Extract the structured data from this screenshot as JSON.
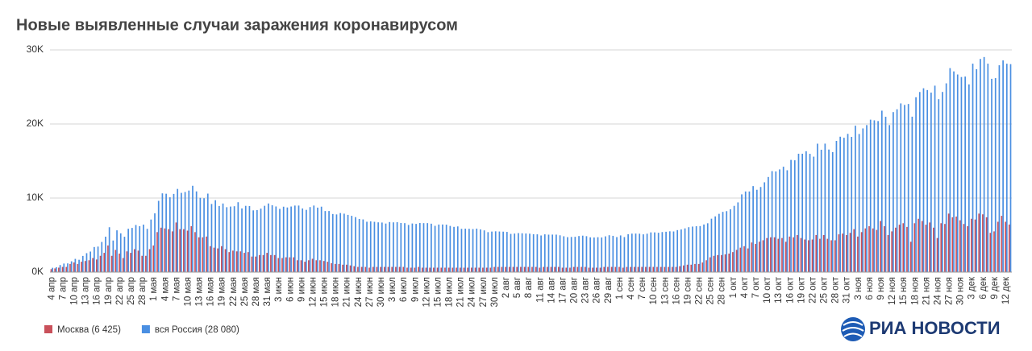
{
  "chart_data": {
    "type": "bar",
    "title": "Новые выявленные случаи заражения коронавирусом",
    "source": "РИА НОВОСТИ",
    "ylim": [
      0,
      30000
    ],
    "yticks": [
      {
        "value": 0,
        "label": "0K"
      },
      {
        "value": 10000,
        "label": "10K"
      },
      {
        "value": 20000,
        "label": "20K"
      },
      {
        "value": 30000,
        "label": "30K"
      }
    ],
    "grid": true,
    "legend": "bottom-left",
    "categories": [
      "4 апр",
      null,
      null,
      "7 апр",
      null,
      null,
      "10 апр",
      null,
      null,
      "13 апр",
      null,
      null,
      "16 апр",
      null,
      null,
      "19 апр",
      null,
      null,
      "22 апр",
      null,
      null,
      "25 апр",
      null,
      null,
      "28 апр",
      null,
      null,
      "1 мая",
      null,
      null,
      "4 мая",
      null,
      null,
      "7 мая",
      null,
      null,
      "10 мая",
      null,
      null,
      "13 мая",
      null,
      null,
      "16 мая",
      null,
      null,
      "19 мая",
      null,
      null,
      "22 мая",
      null,
      null,
      "25 мая",
      null,
      null,
      "28 мая",
      null,
      null,
      "31 мая",
      null,
      null,
      "3 июн",
      null,
      null,
      "6 июн",
      null,
      null,
      "9 июн",
      null,
      null,
      "12 июн",
      null,
      null,
      "15 июн",
      null,
      null,
      "18 июн",
      null,
      null,
      "21 июн",
      null,
      null,
      "24 июн",
      null,
      null,
      "27 июн",
      null,
      null,
      "30 июн",
      null,
      null,
      "3 июл",
      null,
      null,
      "6 июл",
      null,
      null,
      "9 июл",
      null,
      null,
      "12 июл",
      null,
      null,
      "15 июл",
      null,
      null,
      "18 июл",
      null,
      null,
      "21 июл",
      null,
      null,
      "24 июл",
      null,
      null,
      "27 июл",
      null,
      null,
      "30 июл",
      null,
      null,
      "2 авг",
      null,
      null,
      "5 авг",
      null,
      null,
      "8 авг",
      null,
      null,
      "11 авг",
      null,
      null,
      "14 авг",
      null,
      null,
      "17 авг",
      null,
      null,
      "20 авг",
      null,
      null,
      "23 авг",
      null,
      null,
      "26 авг",
      null,
      null,
      "29 авг",
      null,
      null,
      "1 сен",
      null,
      null,
      "4 сен",
      null,
      null,
      "7 сен",
      null,
      null,
      "10 сен",
      null,
      null,
      "13 сен",
      null,
      null,
      "16 сен",
      null,
      null,
      "19 сен",
      null,
      null,
      "22 сен",
      null,
      null,
      "25 сен",
      null,
      null,
      "28 сен",
      null,
      null,
      "1 окт",
      null,
      null,
      "4 окт",
      null,
      null,
      "7 окт",
      null,
      null,
      "10 окт",
      null,
      null,
      "13 окт",
      null,
      null,
      "16 окт",
      null,
      null,
      "19 окт",
      null,
      null,
      "22 окт",
      null,
      null,
      "25 окт",
      null,
      null,
      "28 окт",
      null,
      null,
      "31 окт",
      null,
      null,
      "3 ноя",
      null,
      null,
      "6 ноя",
      null,
      null,
      "9 ноя",
      null,
      null,
      "12 ноя",
      null,
      null,
      "15 ноя",
      null,
      null,
      "18 ноя",
      null,
      null,
      "21 ноя",
      null,
      null,
      "24 ноя",
      null,
      null,
      "27 ноя",
      null,
      null,
      "30 ноя",
      null,
      null,
      "3 дек",
      null,
      null,
      "6 дек",
      null,
      null,
      "9 дек",
      null,
      null,
      "12 дек",
      null
    ],
    "series": [
      {
        "name": "Москва (6 425)",
        "color": "#c9505a",
        "values": [
          400,
          500,
          600,
          700,
          700,
          1100,
          1300,
          1100,
          1400,
          1500,
          1600,
          1900,
          1700,
          2200,
          2600,
          3600,
          2200,
          3000,
          2500,
          1900,
          2800,
          2600,
          3100,
          2900,
          2200,
          2200,
          3100,
          3600,
          5400,
          6000,
          5900,
          5800,
          5500,
          6700,
          5800,
          5800,
          5600,
          6200,
          5400,
          4700,
          4700,
          4800,
          3500,
          3300,
          3200,
          3500,
          3100,
          2700,
          2900,
          2800,
          2800,
          2600,
          2700,
          2100,
          2100,
          2300,
          2300,
          2600,
          2300,
          2300,
          1900,
          1900,
          2000,
          2000,
          2000,
          1600,
          1600,
          1400,
          1600,
          1800,
          1600,
          1600,
          1500,
          1400,
          1200,
          1100,
          1100,
          1000,
          1000,
          900,
          800,
          700,
          700,
          700,
          600,
          700,
          700,
          700,
          700,
          700,
          700,
          700,
          700,
          700,
          600,
          600,
          600,
          700,
          600,
          600,
          600,
          600,
          600,
          600,
          600,
          600,
          600,
          600,
          600,
          600,
          600,
          600,
          600,
          600,
          600,
          600,
          600,
          700,
          700,
          700,
          700,
          700,
          700,
          700,
          700,
          700,
          700,
          700,
          700,
          600,
          700,
          700,
          700,
          700,
          700,
          600,
          600,
          600,
          700,
          700,
          700,
          700,
          600,
          600,
          600,
          600,
          700,
          700,
          700,
          700,
          700,
          600,
          700,
          700,
          700,
          700,
          700,
          700,
          700,
          700,
          700,
          700,
          700,
          700,
          700,
          700,
          800,
          900,
          1000,
          1000,
          1100,
          1100,
          1300,
          1600,
          2000,
          2200,
          2300,
          2300,
          2400,
          2500,
          2700,
          3000,
          3300,
          3500,
          3200,
          4000,
          3800,
          4100,
          4300,
          4600,
          4700,
          4700,
          4500,
          4600,
          4100,
          4800,
          4700,
          5000,
          4600,
          4400,
          4300,
          4400,
          5000,
          4500,
          5000,
          4500,
          4300,
          4300,
          5100,
          5200,
          5000,
          5300,
          5800,
          4800,
          5400,
          5900,
          6200,
          5900,
          5700,
          6900,
          6200,
          5000,
          5500,
          6000,
          6400,
          6600,
          6100,
          4100,
          6600,
          7200,
          6900,
          6400,
          6700,
          6000,
          4600,
          6600,
          6500,
          7900,
          7400,
          7500,
          7000,
          6500,
          6200,
          7200,
          7100,
          7900,
          7800,
          7400,
          5300,
          5500,
          6800,
          7600,
          6800,
          6425
        ]
      },
      {
        "name": "вся Россия (28 080)",
        "color": "#4a8fe2",
        "values": [
          582,
          658,
          954,
          1154,
          1175,
          1459,
          1786,
          1667,
          2186,
          2558,
          2774,
          3388,
          3448,
          4070,
          4785,
          6060,
          4268,
          5642,
          5236,
          4774,
          5849,
          5966,
          6361,
          6198,
          6411,
          5841,
          7099,
          7933,
          9623,
          10633,
          10581,
          10102,
          10559,
          11231,
          10699,
          10817,
          11012,
          11656,
          10899,
          10028,
          9974,
          10598,
          9200,
          9709,
          8926,
          9263,
          8764,
          8849,
          8894,
          9434,
          8599,
          8946,
          8915,
          8338,
          8371,
          8572,
          8952,
          9268,
          9035,
          8863,
          8536,
          8831,
          8726,
          8855,
          8984,
          8985,
          8595,
          8404,
          8779,
          8987,
          8706,
          8835,
          8246,
          8248,
          7843,
          7790,
          7972,
          7889,
          7728,
          7600,
          7425,
          7176,
          7113,
          6800,
          6852,
          6791,
          6719,
          6693,
          6556,
          6760,
          6718,
          6736,
          6632,
          6611,
          6368,
          6562,
          6509,
          6635,
          6611,
          6615,
          6537,
          6248,
          6422,
          6428,
          6406,
          6234,
          6109,
          6170,
          5842,
          5862,
          5848,
          5811,
          5871,
          5765,
          5635,
          5395,
          5475,
          5509,
          5482,
          5462,
          5427,
          5159,
          5204,
          5267,
          5241,
          5212,
          5189,
          5118,
          5102,
          4945,
          5102,
          5057,
          5065,
          5061,
          4969,
          4839,
          4718,
          4748,
          4767,
          4870,
          4921,
          4852,
          4696,
          4676,
          4711,
          4676,
          4829,
          4980,
          4897,
          4729,
          4952,
          4729,
          5110,
          5195,
          5205,
          5185,
          5099,
          5185,
          5363,
          5363,
          5310,
          5406,
          5449,
          5509,
          5488,
          5670,
          5762,
          5905,
          6065,
          6148,
          6196,
          6215,
          6431,
          6595,
          7212,
          7523,
          7867,
          8135,
          8232,
          8481,
          8945,
          9412,
          10499,
          10888,
          10888,
          11615,
          11115,
          11493,
          12126,
          12846,
          13634,
          13592,
          13868,
          14231,
          13754,
          15150,
          15099,
          15982,
          15982,
          16319,
          15971,
          15590,
          17340,
          16521,
          17347,
          16550,
          16202,
          17717,
          18283,
          18140,
          18665,
          18257,
          19768,
          18648,
          19404,
          19851,
          20582,
          20498,
          20396,
          21798,
          20977,
          19851,
          21608,
          21983,
          22778,
          22572,
          22702,
          20985,
          23610,
          24318,
          24822,
          24581,
          24236,
          25173,
          23351,
          24326,
          25487,
          27543,
          27100,
          26683,
          26338,
          26402,
          25345,
          28145,
          27403,
          28782,
          29039,
          28142,
          26097,
          26190,
          27927,
          28585,
          28137,
          28080
        ]
      }
    ]
  }
}
